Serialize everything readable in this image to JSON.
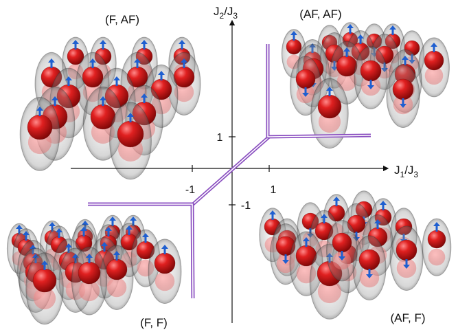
{
  "axes": {
    "x_label_main": "J",
    "x_label_sub1": "1",
    "x_label_mid": "/J",
    "x_label_sub2": "3",
    "y_label_main": "J",
    "y_label_sub1": "2",
    "y_label_mid": "/J",
    "y_label_sub2": "3",
    "ticks": {
      "x_pos": "1",
      "x_neg": "-1",
      "y_pos": "1",
      "y_neg": "-1"
    }
  },
  "phases": {
    "top_left": "(F, AF)",
    "top_right": "(AF, AF)",
    "bottom_left": "(F, F)",
    "bottom_right": "(AF, F)"
  },
  "colors": {
    "boundary": "#8a4fc0",
    "sphere": "#d31a1a",
    "spin_arrow": "#1f5fd0",
    "ghost": "#9a9a9a",
    "axis": "#111111"
  },
  "clusters": {
    "top_left": {
      "spins": [
        "up",
        "up",
        "up",
        "up",
        "up",
        "up",
        "up",
        "up",
        "up",
        "up",
        "up",
        "up",
        "up",
        "up",
        "up",
        "up"
      ]
    },
    "top_right": {
      "spins": [
        "up",
        "down",
        "up",
        "down",
        "up",
        "down",
        "up",
        "down",
        "up",
        "down",
        "up",
        "down",
        "up",
        "down",
        "up",
        "down",
        "up",
        "down"
      ]
    },
    "bottom_left": {
      "spins": [
        "up",
        "up",
        "up",
        "up",
        "up",
        "up",
        "up",
        "up",
        "up",
        "up",
        "up",
        "up",
        "up",
        "up",
        "up",
        "up",
        "up",
        "up",
        "up",
        "up"
      ]
    },
    "bottom_right": {
      "spins": [
        "up",
        "down",
        "up",
        "down",
        "up",
        "down",
        "up",
        "down",
        "up",
        "down",
        "up",
        "down",
        "up",
        "down",
        "up",
        "down",
        "up",
        "down"
      ]
    }
  }
}
